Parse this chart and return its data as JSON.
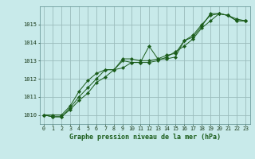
{
  "title": "Graphe pression niveau de la mer (hPa)",
  "bg_color": "#c8eaea",
  "grid_color": "#9bbcbc",
  "line_color": "#1a5c1a",
  "marker_color": "#1a5c1a",
  "xlim": [
    -0.5,
    23.5
  ],
  "ylim": [
    1009.5,
    1016.0
  ],
  "yticks": [
    1010,
    1011,
    1012,
    1013,
    1014,
    1015
  ],
  "xticks": [
    0,
    1,
    2,
    3,
    4,
    5,
    6,
    7,
    8,
    9,
    10,
    11,
    12,
    13,
    14,
    15,
    16,
    17,
    18,
    19,
    20,
    21,
    22,
    23
  ],
  "series1": [
    1010.0,
    1009.9,
    1009.9,
    1010.4,
    1011.0,
    1011.5,
    1012.0,
    1012.5,
    1012.5,
    1013.0,
    1012.9,
    1012.9,
    1013.8,
    1013.1,
    1013.1,
    1013.2,
    1014.1,
    1014.3,
    1014.9,
    1015.6,
    1015.6,
    1015.5,
    1015.3,
    1015.2
  ],
  "series2": [
    1010.0,
    1009.9,
    1009.9,
    1010.3,
    1010.8,
    1011.2,
    1011.8,
    1012.1,
    1012.5,
    1012.6,
    1012.9,
    1012.9,
    1012.9,
    1013.0,
    1013.2,
    1013.5,
    1013.8,
    1014.2,
    1014.8,
    1015.2,
    1015.6,
    1015.5,
    1015.2,
    1015.2
  ],
  "series3": [
    1010.0,
    1010.0,
    1010.0,
    1010.5,
    1011.3,
    1011.9,
    1012.3,
    1012.5,
    1012.5,
    1013.1,
    1013.1,
    1013.0,
    1013.0,
    1013.1,
    1013.3,
    1013.4,
    1014.1,
    1014.4,
    1015.0,
    1015.5,
    1015.6,
    1015.5,
    1015.2,
    1015.2
  ]
}
